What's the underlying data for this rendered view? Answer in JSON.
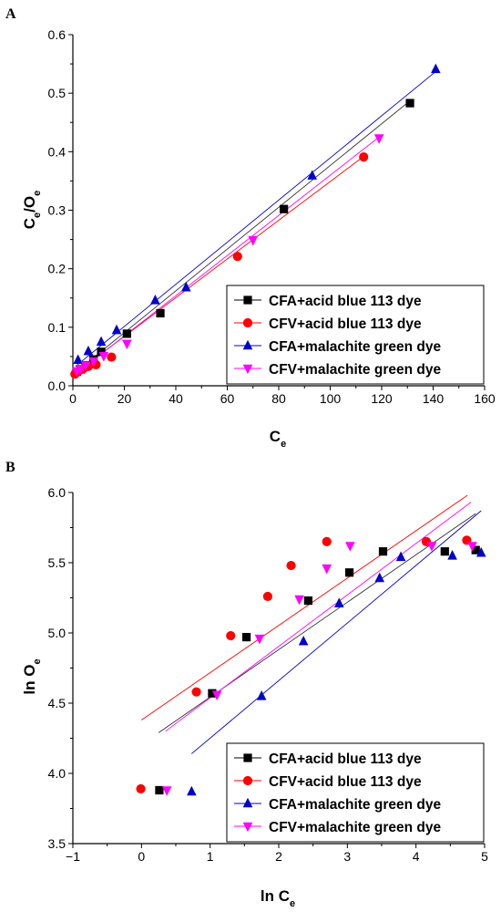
{
  "chart_data": [
    {
      "panel": "A",
      "type": "scatter",
      "xlabel": "C",
      "xlabel_sub": "e",
      "ylabel_parts": [
        "C",
        "e",
        "/O",
        "e"
      ],
      "xlim": [
        0,
        160
      ],
      "ylim": [
        0,
        0.6
      ],
      "xticks": [
        0,
        20,
        40,
        60,
        80,
        100,
        120,
        140,
        160
      ],
      "xtick_labels": [
        "0",
        "20",
        "40",
        "60",
        "80",
        "100",
        "120",
        "140",
        "160"
      ],
      "yticks": [
        0,
        0.1,
        0.2,
        0.3,
        0.4,
        0.5,
        0.6
      ],
      "ytick_labels": [
        "0.0",
        "0.1",
        "0.2",
        "0.3",
        "0.4",
        "0.5",
        "0.6"
      ],
      "legend_position": "bottom-right",
      "series": [
        {
          "name": "CFA+acid blue 113 dye",
          "color": "#000000",
          "marker": "square",
          "x": [
            1.5,
            3,
            5,
            8,
            11,
            21,
            34,
            82,
            131
          ],
          "y": [
            0.024,
            0.028,
            0.035,
            0.045,
            0.058,
            0.089,
            0.124,
            0.302,
            0.483
          ],
          "fit": [
            [
              1,
              0.023
            ],
            [
              131,
              0.487
            ]
          ]
        },
        {
          "name": "CFV+acid blue 113 dye",
          "color": "#ff0000",
          "marker": "circle",
          "x": [
            0.8,
            1.5,
            2.5,
            4,
            6,
            9,
            15,
            64,
            113
          ],
          "y": [
            0.02,
            0.023,
            0.026,
            0.029,
            0.033,
            0.036,
            0.049,
            0.221,
            0.391
          ],
          "fit": [
            [
              0.5,
              0.02
            ],
            [
              113,
              0.392
            ]
          ]
        },
        {
          "name": "CFA+malachite green dye",
          "color": "#0000cc",
          "marker": "triangle-up",
          "x": [
            2,
            6,
            11,
            17,
            32,
            44,
            93,
            141
          ],
          "y": [
            0.044,
            0.059,
            0.075,
            0.095,
            0.146,
            0.168,
            0.359,
            0.541
          ],
          "fit": [
            [
              1,
              0.033
            ],
            [
              141,
              0.537
            ]
          ]
        },
        {
          "name": "CFV+malachite green dye",
          "color": "#ff00ff",
          "marker": "triangle-down",
          "x": [
            1.5,
            3,
            5,
            8,
            12,
            21,
            70,
            119
          ],
          "y": [
            0.025,
            0.029,
            0.035,
            0.042,
            0.051,
            0.072,
            0.249,
            0.423
          ],
          "fit": [
            [
              1,
              0.02
            ],
            [
              119,
              0.425
            ]
          ]
        }
      ]
    },
    {
      "panel": "B",
      "type": "scatter",
      "xlabel": "ln C",
      "xlabel_sub": "e",
      "ylabel": "ln O",
      "ylabel_sub": "e",
      "xlim": [
        -1,
        5
      ],
      "ylim": [
        3.5,
        6.0
      ],
      "xticks": [
        -1,
        0,
        1,
        2,
        3,
        4,
        5
      ],
      "xtick_labels": [
        "−1",
        "0",
        "1",
        "2",
        "3",
        "4",
        "5"
      ],
      "yticks": [
        3.5,
        4.0,
        4.5,
        5.0,
        5.5,
        6.0
      ],
      "ytick_labels": [
        "3.5",
        "4.0",
        "4.5",
        "5.0",
        "5.5",
        "6.0"
      ],
      "legend_position": "bottom-right",
      "series": [
        {
          "name": "CFA+acid blue 113 dye",
          "color": "#000000",
          "marker": "square",
          "x": [
            0.26,
            1.03,
            1.53,
            2.43,
            3.03,
            3.52,
            4.42,
            4.87
          ],
          "y": [
            3.88,
            4.57,
            4.97,
            5.23,
            5.43,
            5.58,
            5.58,
            5.59
          ],
          "fit": [
            [
              0.25,
              4.29
            ],
            [
              4.87,
              5.85
            ]
          ]
        },
        {
          "name": "CFV+acid blue 113 dye",
          "color": "#ff0000",
          "marker": "circle",
          "x": [
            -0.01,
            0.8,
            1.3,
            1.84,
            2.18,
            2.7,
            4.15,
            4.74
          ],
          "y": [
            3.89,
            4.58,
            4.98,
            5.26,
            5.48,
            5.65,
            5.65,
            5.66
          ],
          "fit": [
            [
              0,
              4.38
            ],
            [
              4.75,
              5.98
            ]
          ]
        },
        {
          "name": "CFA+malachite green dye",
          "color": "#0000cc",
          "marker": "triangle-up",
          "x": [
            0.73,
            1.75,
            2.36,
            2.88,
            3.47,
            3.78,
            4.53,
            4.95
          ],
          "y": [
            3.87,
            4.55,
            4.94,
            5.21,
            5.39,
            5.54,
            5.55,
            5.57
          ],
          "fit": [
            [
              0.73,
              4.14
            ],
            [
              4.95,
              5.87
            ]
          ]
        },
        {
          "name": "CFV+malachite green dye",
          "color": "#ff00ff",
          "marker": "triangle-down",
          "x": [
            0.37,
            1.1,
            1.72,
            2.3,
            2.7,
            3.04,
            4.23,
            4.82
          ],
          "y": [
            3.88,
            4.56,
            4.96,
            5.24,
            5.46,
            5.62,
            5.62,
            5.62
          ],
          "fit": [
            [
              0.35,
              4.3
            ],
            [
              4.8,
              5.93
            ]
          ]
        }
      ]
    }
  ]
}
